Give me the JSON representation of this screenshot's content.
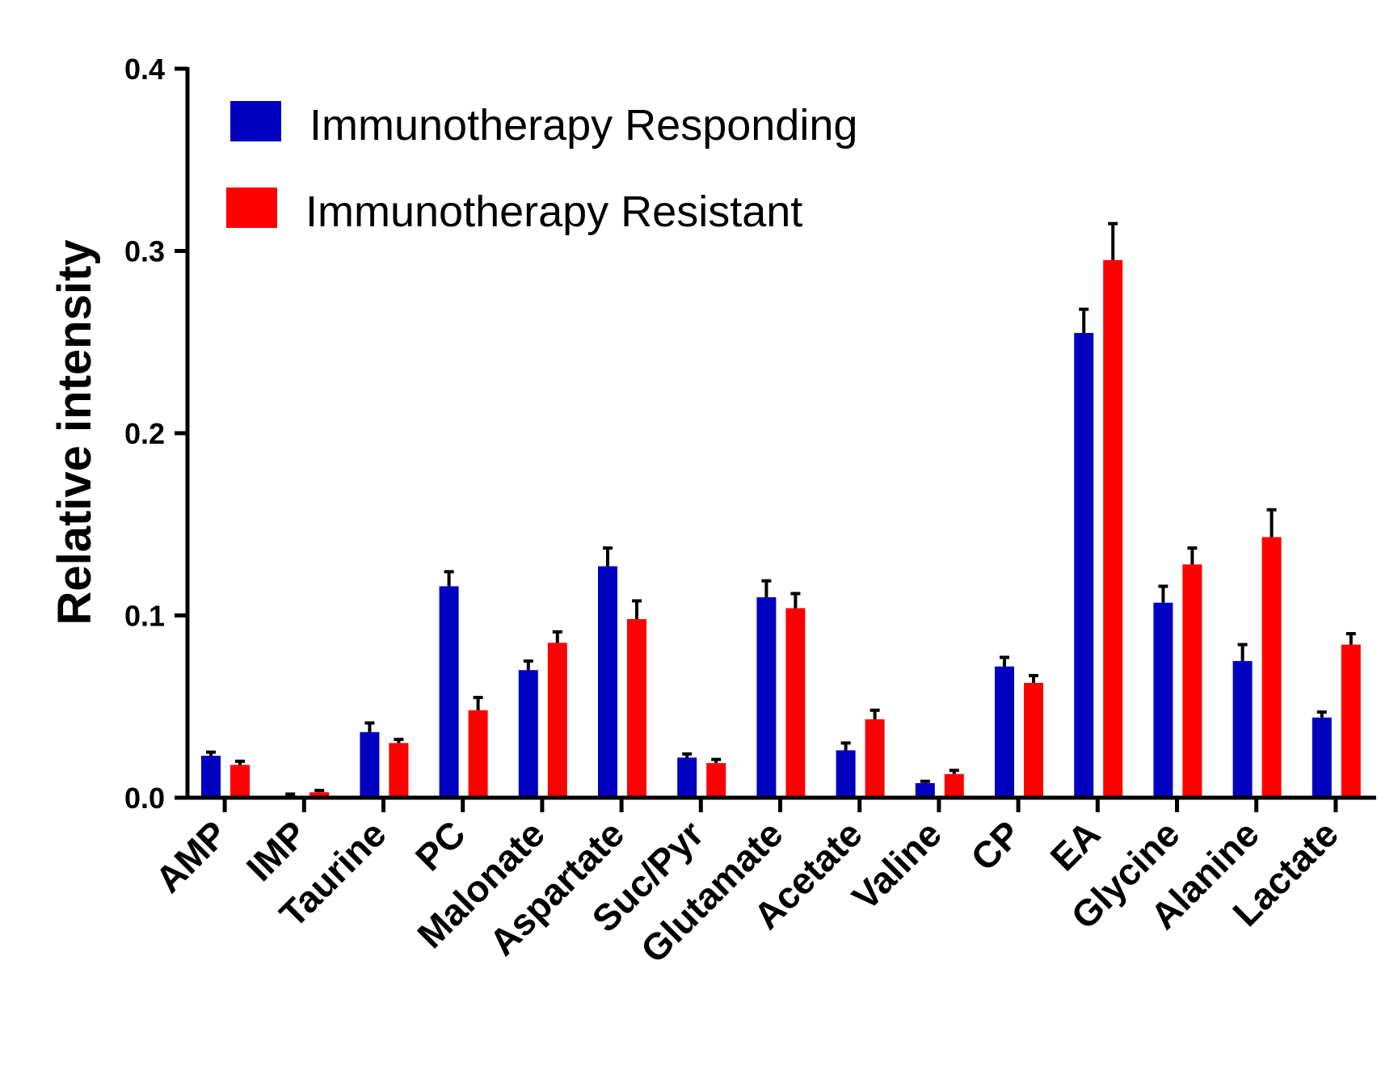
{
  "chart_data": {
    "type": "bar",
    "title": "",
    "xlabel": "",
    "ylabel": "Relative intensity",
    "ylim": [
      0,
      0.4
    ],
    "yticks": [
      "0.0",
      "0.1",
      "0.2",
      "0.3",
      "0.4"
    ],
    "ytick_values": [
      0,
      0.1,
      0.2,
      0.3,
      0.4
    ],
    "categories": [
      "AMP",
      "IMP",
      "Taurine",
      "PC",
      "Malonate",
      "Aspartate",
      "Suc/Pyr",
      "Glutamate",
      "Acetate",
      "Valine",
      "CP",
      "EA",
      "Glycine",
      "Alanine",
      "Lactate"
    ],
    "series": [
      {
        "name": "Immunotherapy Responding",
        "color": "#0000c0",
        "values": [
          0.023,
          0.001,
          0.036,
          0.116,
          0.07,
          0.127,
          0.022,
          0.11,
          0.026,
          0.008,
          0.072,
          0.255,
          0.107,
          0.075,
          0.044
        ],
        "errors": [
          0.002,
          0.001,
          0.005,
          0.008,
          0.005,
          0.01,
          0.002,
          0.009,
          0.004,
          0.001,
          0.005,
          0.013,
          0.009,
          0.009,
          0.003
        ]
      },
      {
        "name": "Immunotherapy Resistant",
        "color": "#ff0000",
        "values": [
          0.018,
          0.003,
          0.03,
          0.048,
          0.085,
          0.098,
          0.019,
          0.104,
          0.043,
          0.013,
          0.063,
          0.295,
          0.128,
          0.143,
          0.084
        ],
        "errors": [
          0.002,
          0.001,
          0.002,
          0.007,
          0.006,
          0.01,
          0.002,
          0.008,
          0.005,
          0.002,
          0.004,
          0.02,
          0.009,
          0.015,
          0.006
        ]
      }
    ],
    "legend": "top-left",
    "grid": false
  }
}
